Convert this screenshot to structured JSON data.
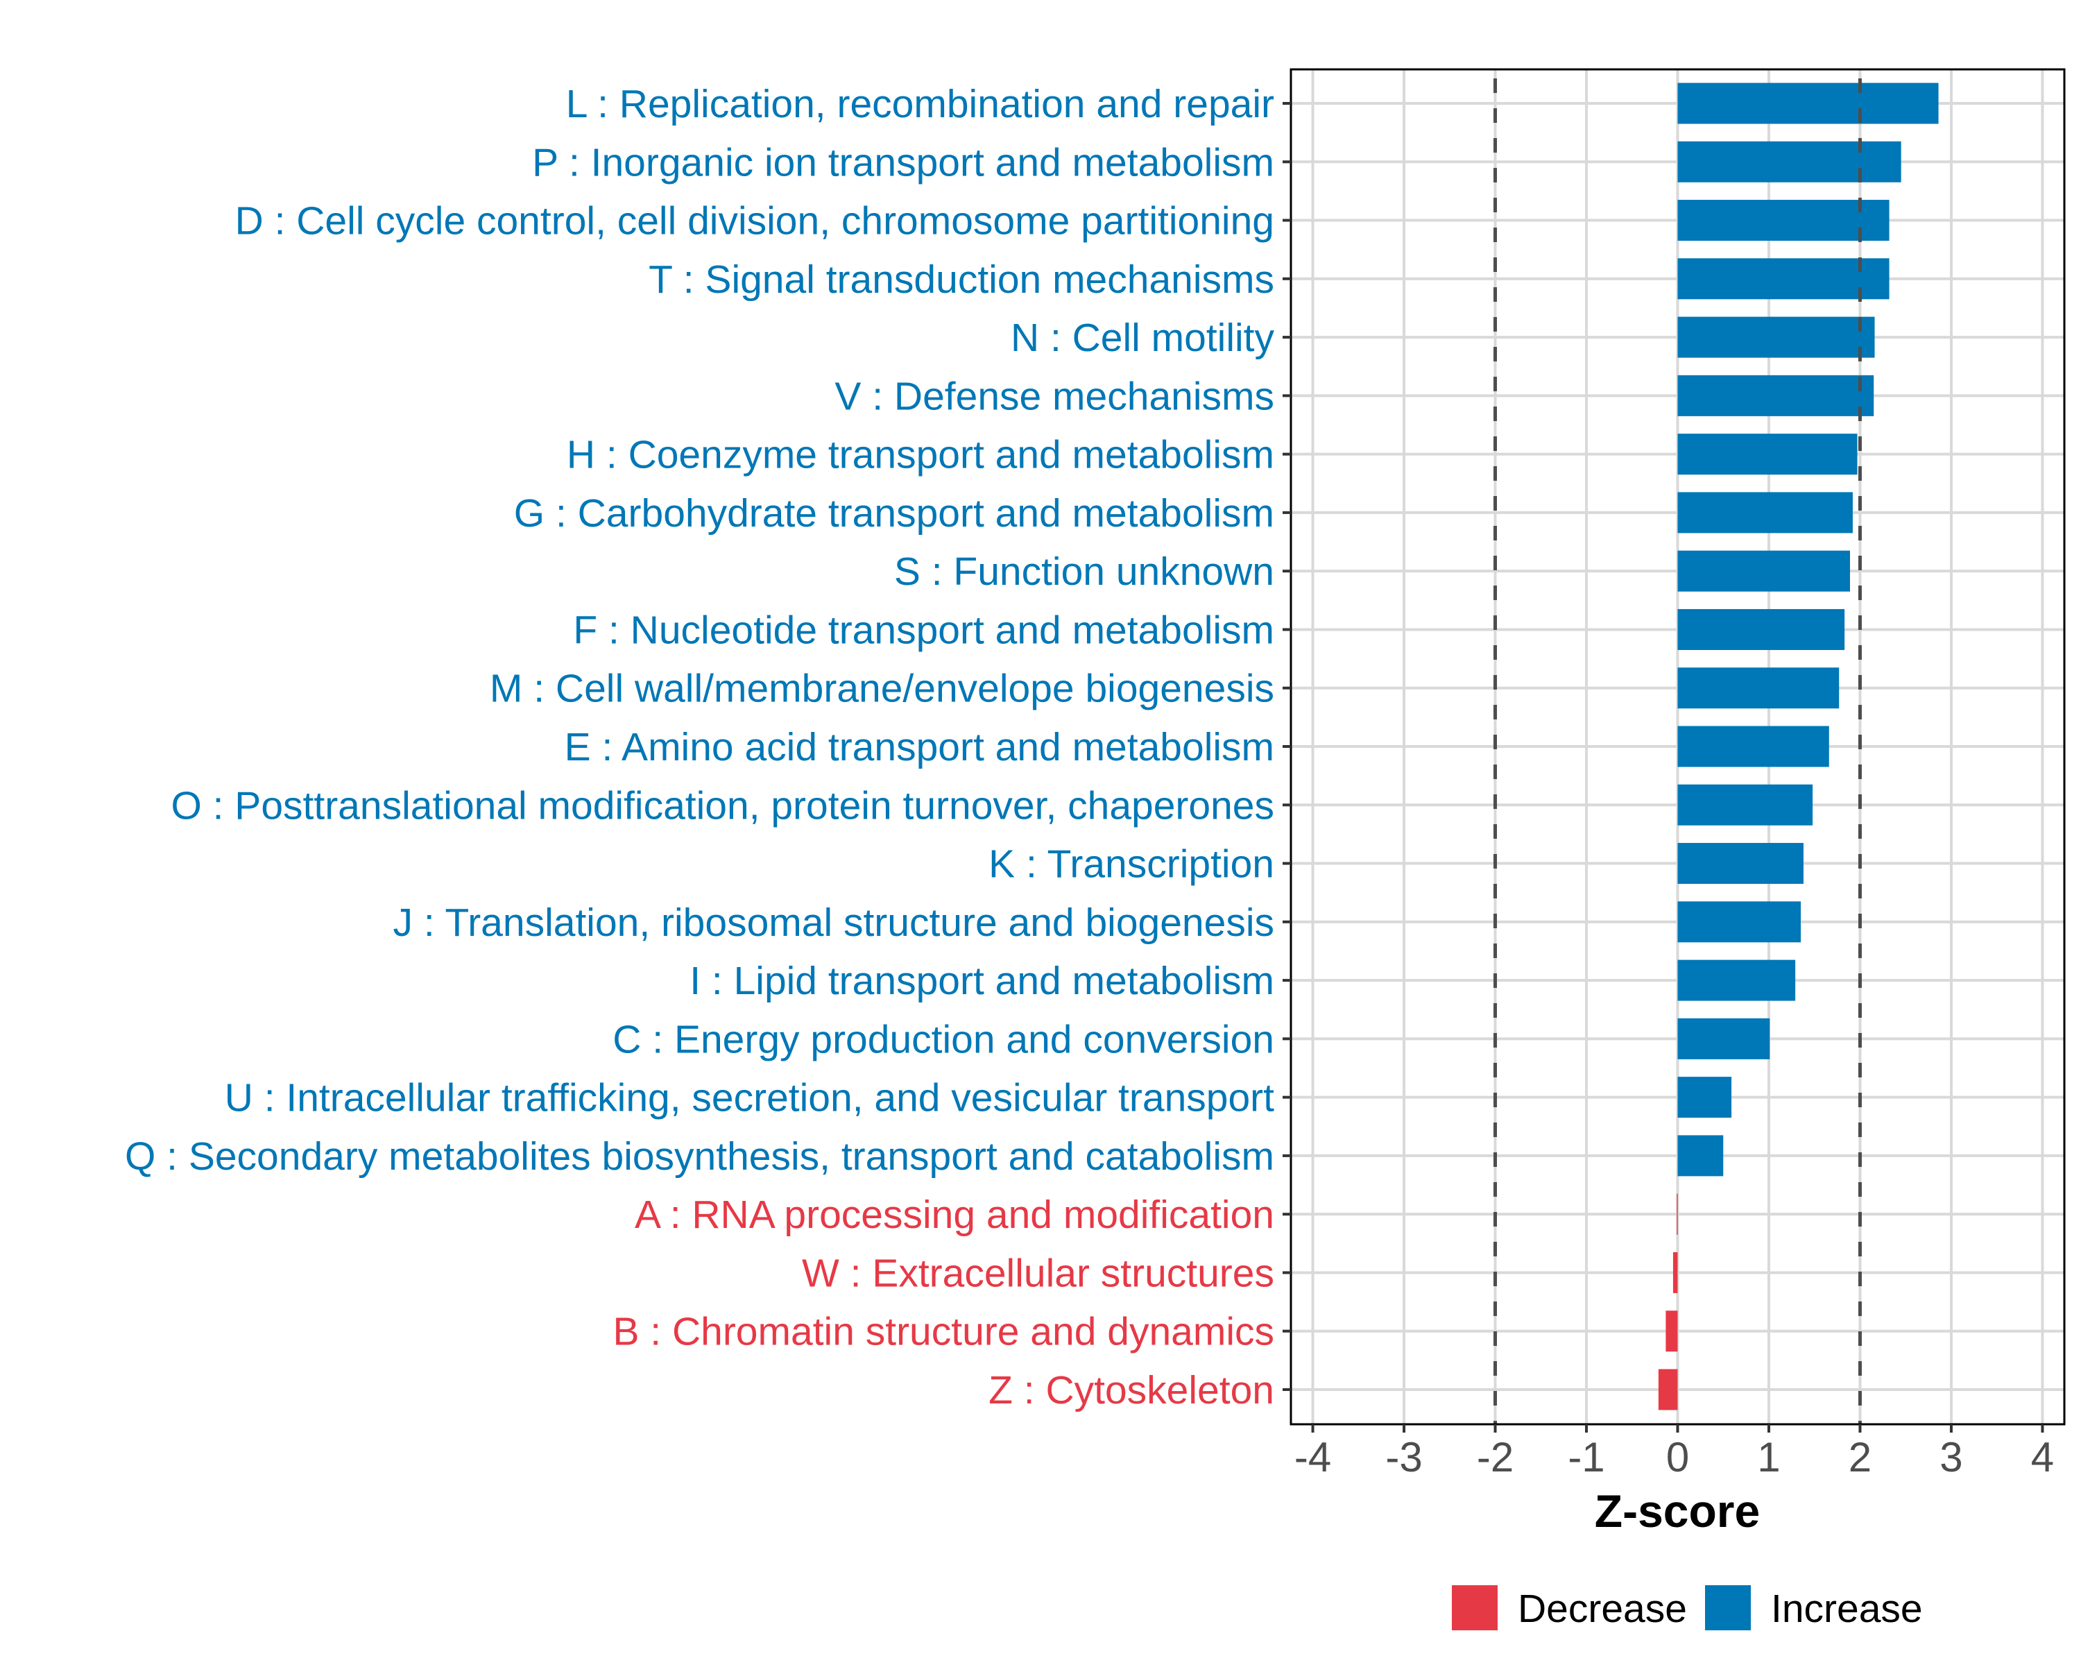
{
  "chart_data": {
    "type": "bar",
    "orientation": "horizontal",
    "title": "",
    "xlabel": "Z-score",
    "ylabel": "",
    "xlim": [
      -4.24,
      4.24
    ],
    "xticks": [
      -4,
      -3,
      -2,
      -1,
      0,
      1,
      2,
      3,
      4
    ],
    "xtick_labels": [
      "-4",
      "-3",
      "-2",
      "-1",
      "0",
      "1",
      "2",
      "3",
      "4"
    ],
    "grid": true,
    "reference_lines": [
      -2,
      2
    ],
    "legend": {
      "placement": "bottom",
      "entries": [
        {
          "label": "Decrease",
          "color": "#E63946"
        },
        {
          "label": "Increase",
          "color": "#0077B6"
        }
      ]
    },
    "categories": [
      "L : Replication, recombination and repair",
      "P : Inorganic ion transport and metabolism",
      "D : Cell cycle control, cell division, chromosome partitioning",
      "T : Signal transduction mechanisms",
      "N : Cell motility",
      "V : Defense mechanisms",
      "H : Coenzyme transport and metabolism",
      "G : Carbohydrate transport and metabolism",
      "S : Function unknown",
      "F : Nucleotide transport and metabolism",
      "M : Cell wall/membrane/envelope biogenesis",
      "E : Amino acid transport and metabolism",
      "O : Posttranslational modification, protein turnover, chaperones",
      "K : Transcription",
      "J : Translation, ribosomal structure and biogenesis",
      "I : Lipid transport and metabolism",
      "C : Energy production and conversion",
      "U : Intracellular trafficking, secretion, and vesicular transport",
      "Q : Secondary metabolites biosynthesis, transport and catabolism",
      "A : RNA processing and modification",
      "W : Extracellular structures",
      "B : Chromatin structure and dynamics",
      "Z : Cytoskeleton"
    ],
    "values": [
      2.86,
      2.45,
      2.32,
      2.32,
      2.16,
      2.15,
      1.97,
      1.92,
      1.89,
      1.83,
      1.77,
      1.66,
      1.48,
      1.38,
      1.35,
      1.29,
      1.01,
      0.59,
      0.5,
      -0.01,
      -0.05,
      -0.13,
      -0.21
    ],
    "groups": [
      "Increase",
      "Increase",
      "Increase",
      "Increase",
      "Increase",
      "Increase",
      "Increase",
      "Increase",
      "Increase",
      "Increase",
      "Increase",
      "Increase",
      "Increase",
      "Increase",
      "Increase",
      "Increase",
      "Increase",
      "Increase",
      "Increase",
      "Decrease",
      "Decrease",
      "Decrease",
      "Decrease"
    ]
  }
}
